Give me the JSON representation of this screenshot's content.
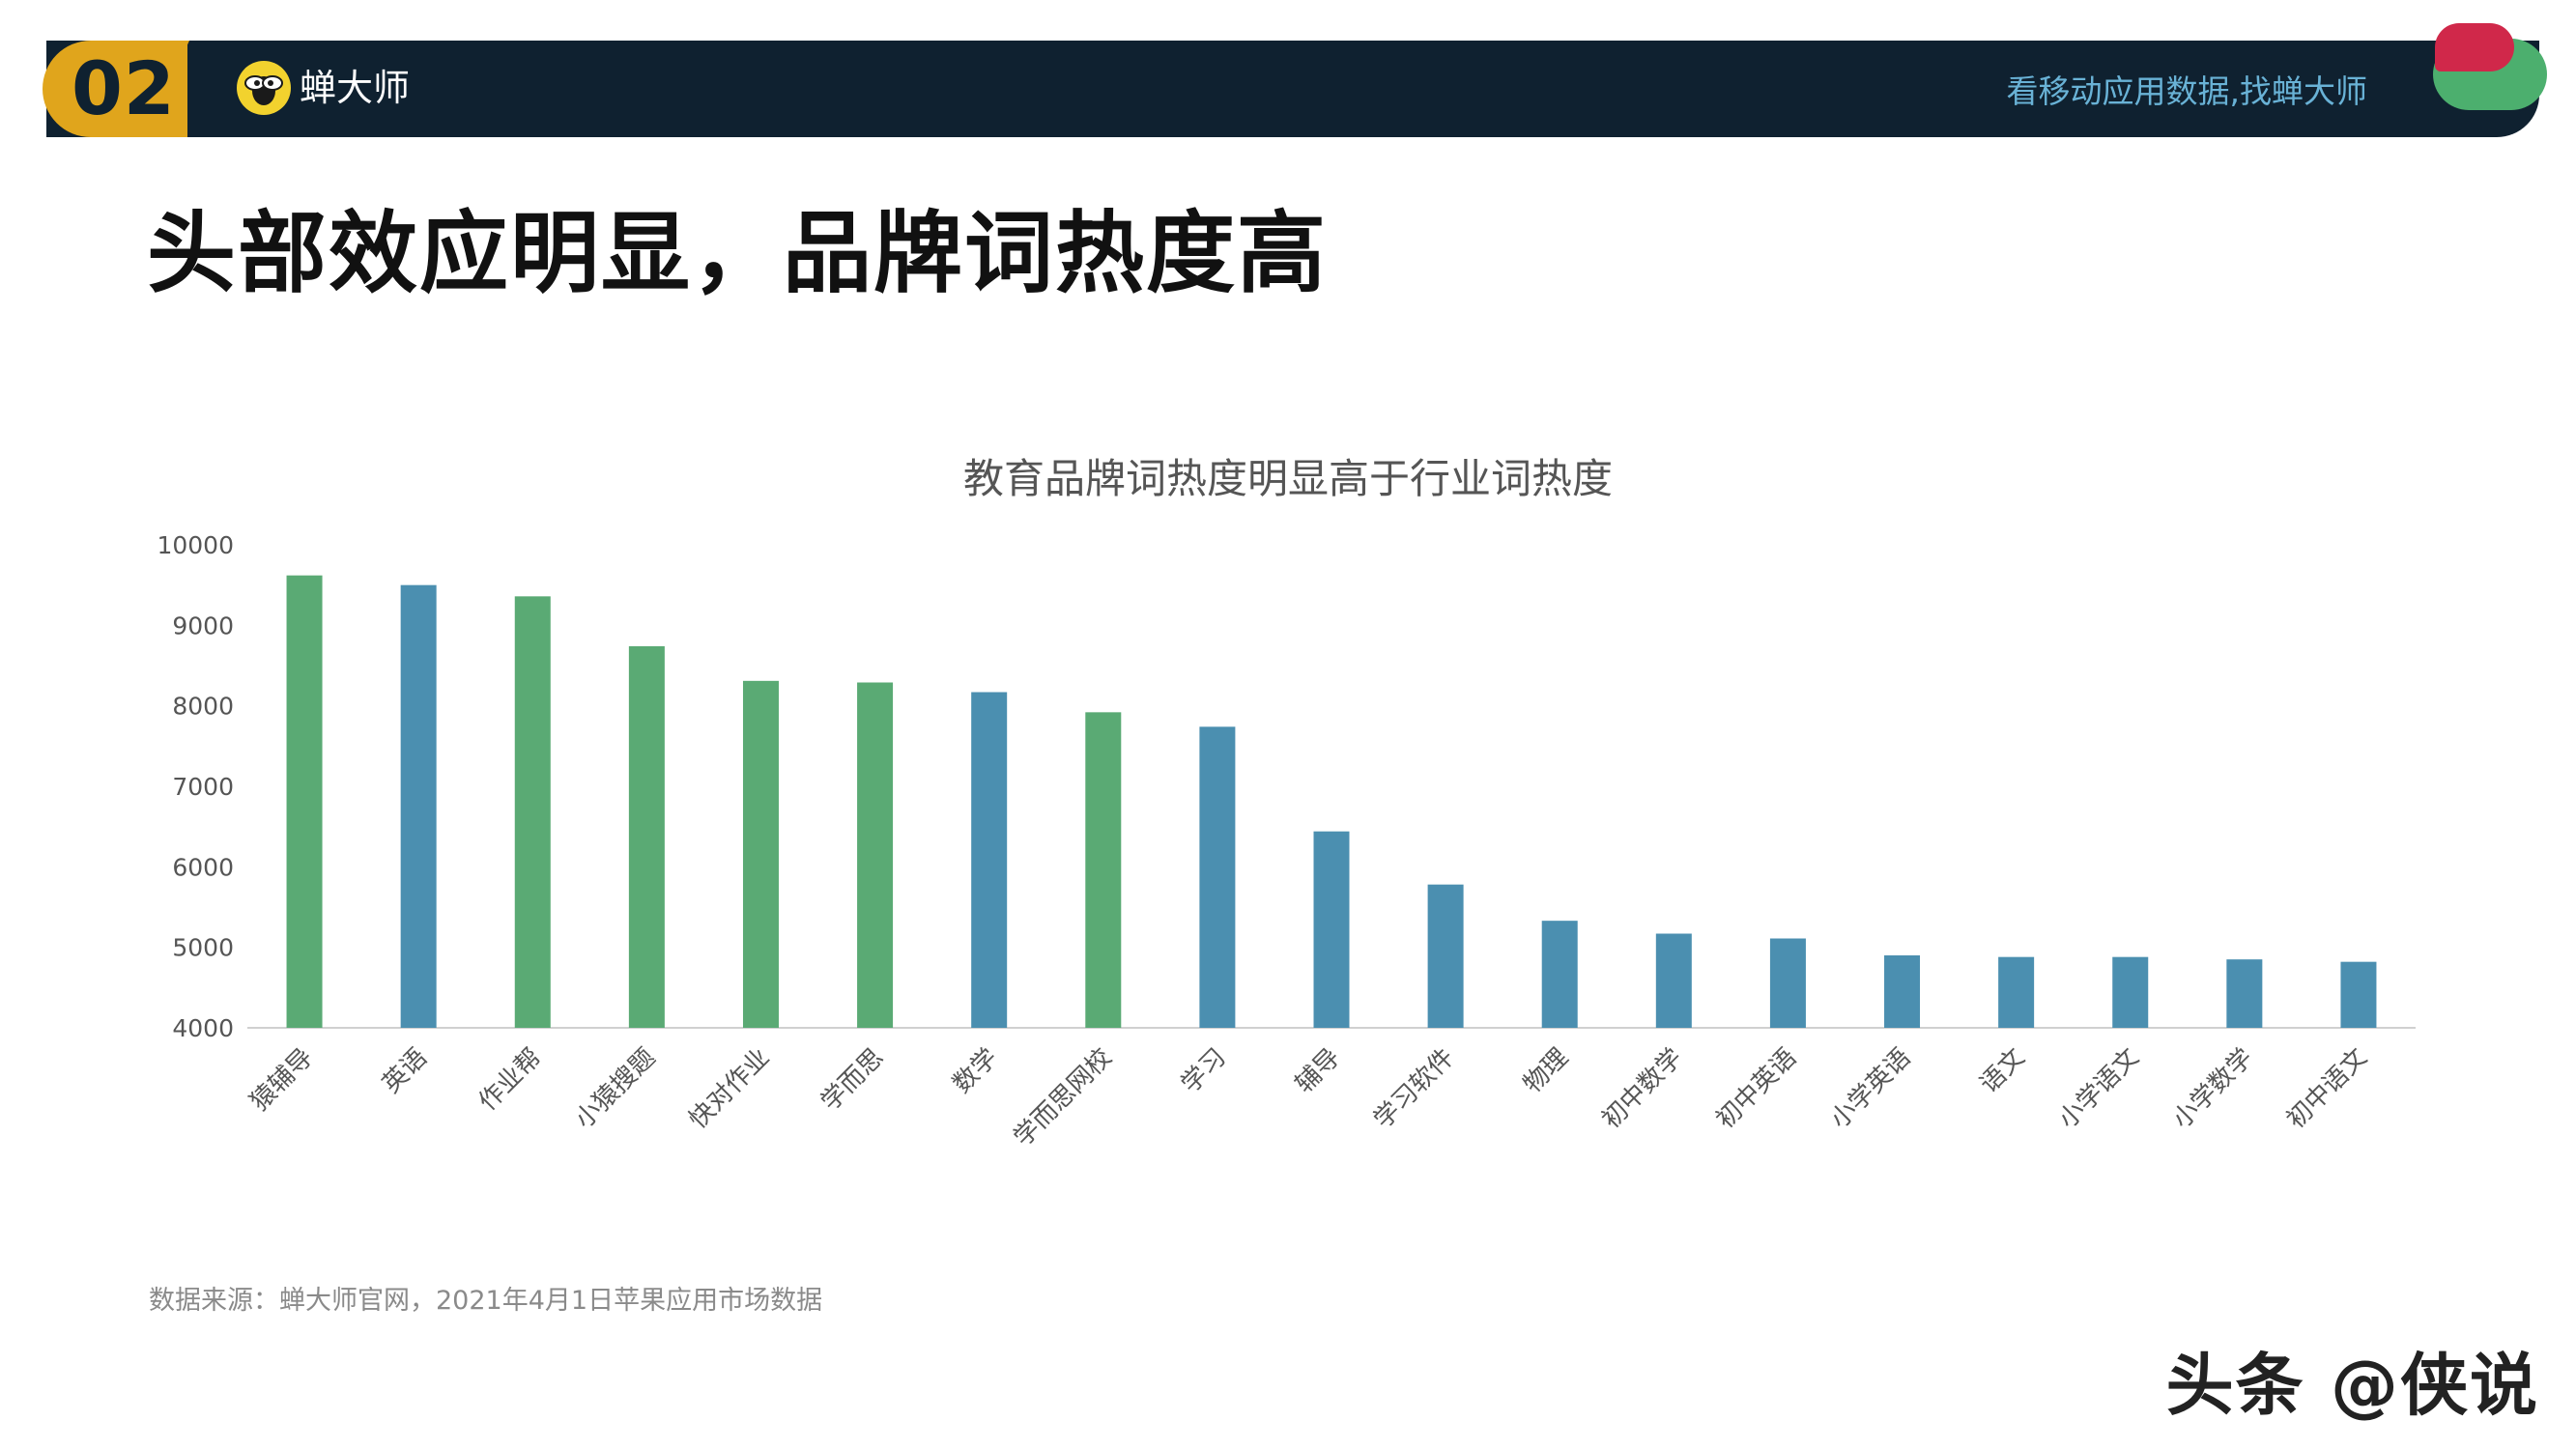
{
  "header": {
    "page_number": "02",
    "brand_name": "蝉大师",
    "slogan": "看移动应用数据,找蝉大师",
    "logo_icon": "cicada-logo-icon",
    "colors": {
      "band": "#0f2130",
      "badge": "#e0a51c",
      "slogan": "#69b2d6",
      "deco_red": "#d0284a",
      "deco_green": "#4caf6e"
    }
  },
  "page_title": "头部效应明显，品牌词热度高",
  "chart_data": {
    "type": "bar",
    "title": "教育品牌词热度明显高于行业词热度",
    "xlabel": "",
    "ylabel": "",
    "ylim": [
      4000,
      10000
    ],
    "yticks": [
      "10000",
      "9000",
      "8000",
      "7000",
      "6000",
      "5000",
      "4000"
    ],
    "grid": false,
    "categories": [
      "猿辅导",
      "英语",
      "作业帮",
      "小猿搜题",
      "快对作业",
      "学而思",
      "数学",
      "学而思网校",
      "学习",
      "辅导",
      "学习软件",
      "物理",
      "初中数学",
      "初中英语",
      "小学英语",
      "语文",
      "小学语文",
      "小学数学",
      "初中语文"
    ],
    "values": [
      9620,
      9500,
      9360,
      8740,
      8310,
      8290,
      8170,
      7920,
      7740,
      6440,
      5780,
      5330,
      5170,
      5110,
      4900,
      4880,
      4880,
      4850,
      4820
    ],
    "bar_type": [
      "brand",
      "industry",
      "brand",
      "brand",
      "brand",
      "brand",
      "industry",
      "brand",
      "industry",
      "industry",
      "industry",
      "industry",
      "industry",
      "industry",
      "industry",
      "industry",
      "industry",
      "industry",
      "industry"
    ],
    "colors": {
      "brand": "#5aaa74",
      "industry": "#4b8fb0"
    }
  },
  "source_note": "数据来源：蝉大师官网，2021年4月1日苹果应用市场数据",
  "watermark": "头条 @侠说"
}
